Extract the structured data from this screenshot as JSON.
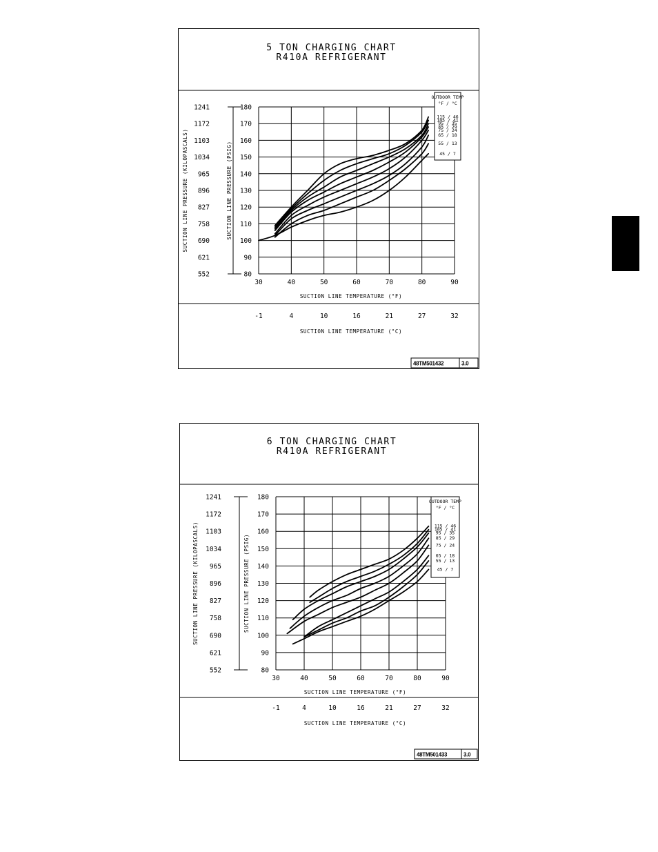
{
  "chart_data": [
    {
      "type": "line",
      "title": "5 TON CHARGING CHART",
      "subtitle": "R410A REFRIGERANT",
      "xlabel": "SUCTION LINE TEMPERATURE (°F)",
      "ylabel": "SUCTION LINE PRESSURE (PSIG)",
      "x2label": "SUCTION LINE TEMPERATURE (°C)",
      "y2label": "SUCTION LINE PRESSURE (KILOPASCALS)",
      "xlim": [
        30,
        90
      ],
      "ylim": [
        80,
        180
      ],
      "x_ticks": [
        "30",
        "40",
        "50",
        "60",
        "70",
        "80",
        "90"
      ],
      "y_ticks": [
        "80",
        "90",
        "100",
        "110",
        "120",
        "130",
        "140",
        "150",
        "160",
        "170",
        "180"
      ],
      "x2_ticks": [
        "-1",
        "4",
        "10",
        "16",
        "21",
        "27",
        "32"
      ],
      "y2_ticks": [
        "552",
        "621",
        "690",
        "758",
        "827",
        "896",
        "965",
        "1034",
        "1103",
        "1172",
        "1241"
      ],
      "grid": true,
      "legend": {
        "title": "OUTDOOR TEMP",
        "units": "°F / °C",
        "entries": [
          "115 / 46",
          "105 / 41",
          "95 / 35",
          "85 / 29",
          "75 / 24",
          "65 / 18",
          "55 / 13",
          "45 / 7"
        ]
      },
      "drawing_id": "48TM501432",
      "revision": "3.0",
      "series": [
        {
          "name": "115 / 46",
          "x": [
            35,
            40,
            45,
            50,
            55,
            60,
            65,
            70,
            75,
            80,
            82
          ],
          "y": [
            109,
            120,
            130,
            140,
            146,
            149,
            151,
            154,
            158,
            166,
            174
          ]
        },
        {
          "name": "105 / 41",
          "x": [
            35,
            40,
            45,
            50,
            55,
            60,
            65,
            70,
            75,
            80,
            82
          ],
          "y": [
            108,
            119,
            128,
            136,
            142,
            146,
            149,
            152,
            157,
            165,
            172
          ]
        },
        {
          "name": "95 / 35",
          "x": [
            35,
            40,
            45,
            50,
            55,
            60,
            65,
            70,
            75,
            80,
            82
          ],
          "y": [
            107,
            118,
            126,
            132,
            138,
            142,
            146,
            150,
            155,
            163,
            170
          ]
        },
        {
          "name": "85 / 29",
          "x": [
            35,
            40,
            45,
            50,
            55,
            60,
            65,
            70,
            75,
            80,
            82
          ],
          "y": [
            106,
            117,
            124,
            129,
            134,
            138,
            142,
            147,
            153,
            162,
            168
          ]
        },
        {
          "name": "75 / 24",
          "x": [
            35,
            40,
            45,
            50,
            55,
            60,
            65,
            70,
            75,
            80,
            82
          ],
          "y": [
            104,
            115,
            121,
            126,
            130,
            134,
            138,
            143,
            150,
            160,
            166
          ]
        },
        {
          "name": "65 / 18",
          "x": [
            35,
            40,
            45,
            50,
            55,
            60,
            65,
            70,
            75,
            80,
            82
          ],
          "y": [
            103,
            113,
            118,
            122,
            126,
            130,
            134,
            139,
            146,
            156,
            163
          ]
        },
        {
          "name": "55 / 13",
          "x": [
            35,
            40,
            45,
            50,
            55,
            60,
            65,
            70,
            75,
            80,
            82
          ],
          "y": [
            102,
            110,
            115,
            118,
            122,
            126,
            130,
            136,
            143,
            152,
            158
          ]
        },
        {
          "name": "45 / 7",
          "x": [
            30,
            35,
            40,
            45,
            50,
            55,
            60,
            65,
            70,
            75,
            80,
            82
          ],
          "y": [
            100,
            103,
            108,
            112,
            115,
            117,
            120,
            124,
            130,
            138,
            148,
            152
          ]
        }
      ]
    },
    {
      "type": "line",
      "title": "6 TON CHARGING CHART",
      "subtitle": "R410A REFRIGERANT",
      "xlabel": "SUCTION LINE TEMPERATURE (°F)",
      "ylabel": "SUCTION LINE PRESSURE (PSIG)",
      "x2label": "SUCTION LINE TEMPERATURE (°C)",
      "y2label": "SUCTION LINE PRESSURE (KILOPASCALS)",
      "xlim": [
        30,
        90
      ],
      "ylim": [
        80,
        180
      ],
      "x_ticks": [
        "30",
        "40",
        "50",
        "60",
        "70",
        "80",
        "90"
      ],
      "y_ticks": [
        "80",
        "90",
        "100",
        "110",
        "120",
        "130",
        "140",
        "150",
        "160",
        "170",
        "180"
      ],
      "x2_ticks": [
        "-1",
        "4",
        "10",
        "16",
        "21",
        "27",
        "32"
      ],
      "y2_ticks": [
        "552",
        "621",
        "690",
        "758",
        "827",
        "896",
        "965",
        "1034",
        "1103",
        "1172",
        "1241"
      ],
      "grid": true,
      "legend": {
        "title": "OUTDOOR TEMP",
        "units": "°F / °C",
        "entries": [
          "115 / 46",
          "105 / 41",
          "95 / 35",
          "85 / 29",
          "75 / 24",
          "65 / 18",
          "55 / 13",
          "45 / 7"
        ]
      },
      "drawing_id": "48TM501433",
      "revision": "3.0",
      "series": [
        {
          "name": "115 / 46",
          "x": [
            42,
            45,
            50,
            55,
            60,
            65,
            70,
            75,
            80,
            84
          ],
          "y": [
            122,
            126,
            131,
            135,
            138,
            141,
            144,
            149,
            156,
            163
          ]
        },
        {
          "name": "105 / 41",
          "x": [
            42,
            45,
            50,
            55,
            60,
            65,
            70,
            75,
            80,
            84
          ],
          "y": [
            119,
            122,
            127,
            131,
            134,
            137,
            141,
            146,
            153,
            161
          ]
        },
        {
          "name": "95 / 35",
          "x": [
            36,
            40,
            45,
            50,
            55,
            60,
            65,
            70,
            75,
            80,
            84
          ],
          "y": [
            109,
            115,
            120,
            124,
            128,
            131,
            134,
            138,
            144,
            151,
            159
          ]
        },
        {
          "name": "85 / 29",
          "x": [
            35,
            40,
            45,
            50,
            55,
            60,
            65,
            70,
            75,
            80,
            84
          ],
          "y": [
            104,
            111,
            116,
            120,
            123,
            127,
            130,
            134,
            140,
            147,
            156
          ]
        },
        {
          "name": "75 / 24",
          "x": [
            34,
            40,
            45,
            50,
            55,
            60,
            65,
            70,
            75,
            80,
            84
          ],
          "y": [
            101,
            108,
            112,
            116,
            119,
            122,
            126,
            130,
            136,
            143,
            152
          ]
        },
        {
          "name": "65 / 18",
          "x": [
            40,
            45,
            50,
            55,
            60,
            65,
            70,
            75,
            80,
            84
          ],
          "y": [
            99,
            105,
            109,
            113,
            117,
            121,
            125,
            131,
            138,
            146
          ]
        },
        {
          "name": "55 / 13",
          "x": [
            40,
            45,
            50,
            55,
            60,
            65,
            70,
            75,
            80,
            84
          ],
          "y": [
            99,
            103,
            107,
            110,
            114,
            117,
            122,
            128,
            135,
            143
          ]
        },
        {
          "name": "45 / 7",
          "x": [
            36,
            40,
            45,
            50,
            55,
            60,
            65,
            70,
            75,
            80,
            84
          ],
          "y": [
            95,
            98,
            102,
            105,
            108,
            111,
            115,
            120,
            125,
            131,
            138
          ]
        }
      ]
    }
  ]
}
